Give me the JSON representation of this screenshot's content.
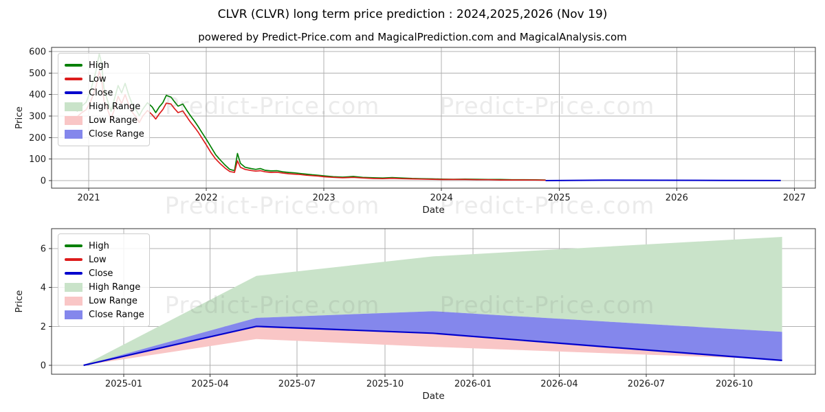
{
  "page": {
    "title": "CLVR (CLVR) long term price prediction : 2024,2025,2026 (Nov 19)",
    "subtitle": "powered by Predict-Price.com and MagicalPrediction.com and MagicalAnalysis.com",
    "watermark": "Predict-Price.com"
  },
  "colors": {
    "high": "#007f00",
    "low": "#dd1c1c",
    "close": "#0000cd",
    "high_range": "#c9e3c9",
    "low_range": "#f9c6c6",
    "close_range": "#8487ec",
    "grid": "#b0b0b0",
    "spine": "#333333",
    "tick_text": "#1a1a1a",
    "watermark": "rgba(110,110,110,0.14)"
  },
  "legend": {
    "items": [
      {
        "label": "High",
        "type": "line",
        "color_key": "high"
      },
      {
        "label": "Low",
        "type": "line",
        "color_key": "low"
      },
      {
        "label": "Close",
        "type": "line",
        "color_key": "close"
      },
      {
        "label": "High Range",
        "type": "patch",
        "color_key": "high_range"
      },
      {
        "label": "Low Range",
        "type": "patch",
        "color_key": "low_range"
      },
      {
        "label": "Close Range",
        "type": "patch",
        "color_key": "close_range"
      }
    ]
  },
  "chart_data": [
    {
      "type": "line",
      "title": "historical-and-prediction",
      "xlabel": "Date",
      "ylabel": "Price",
      "grid": true,
      "legend_position": "upper-left",
      "x_ticks": [
        {
          "label": "2021",
          "t": 2021
        },
        {
          "label": "2022",
          "t": 2022
        },
        {
          "label": "2023",
          "t": 2023
        },
        {
          "label": "2024",
          "t": 2024
        },
        {
          "label": "2025",
          "t": 2025
        },
        {
          "label": "2026",
          "t": 2026
        },
        {
          "label": "2027",
          "t": 2027
        }
      ],
      "y_ticks": [
        0,
        100,
        200,
        300,
        400,
        500,
        600
      ],
      "xlim": [
        2020.68,
        2027.15
      ],
      "ylim": [
        -30,
        617
      ],
      "history_columns": [
        "t_decimal_year",
        "high",
        "low"
      ],
      "history": [
        [
          2020.9,
          320,
          296
        ],
        [
          2020.94,
          345,
          315
        ],
        [
          2020.98,
          365,
          330
        ],
        [
          2021.02,
          425,
          372
        ],
        [
          2021.06,
          505,
          432
        ],
        [
          2021.09,
          590,
          508
        ],
        [
          2021.11,
          545,
          470
        ],
        [
          2021.13,
          430,
          372
        ],
        [
          2021.16,
          372,
          330
        ],
        [
          2021.19,
          322,
          288
        ],
        [
          2021.22,
          382,
          332
        ],
        [
          2021.25,
          442,
          392
        ],
        [
          2021.28,
          408,
          358
        ],
        [
          2021.31,
          452,
          400
        ],
        [
          2021.34,
          398,
          352
        ],
        [
          2021.37,
          356,
          318
        ],
        [
          2021.4,
          332,
          298
        ],
        [
          2021.43,
          302,
          270
        ],
        [
          2021.46,
          332,
          300
        ],
        [
          2021.5,
          362,
          326
        ],
        [
          2021.54,
          342,
          306
        ],
        [
          2021.57,
          316,
          286
        ],
        [
          2021.6,
          342,
          310
        ],
        [
          2021.63,
          362,
          330
        ],
        [
          2021.66,
          396,
          360
        ],
        [
          2021.7,
          388,
          356
        ],
        [
          2021.73,
          366,
          334
        ],
        [
          2021.76,
          346,
          316
        ],
        [
          2021.8,
          356,
          324
        ],
        [
          2021.83,
          330,
          300
        ],
        [
          2021.86,
          306,
          276
        ],
        [
          2021.9,
          276,
          248
        ],
        [
          2021.93,
          252,
          226
        ],
        [
          2021.96,
          226,
          200
        ],
        [
          2022.0,
          192,
          166
        ],
        [
          2022.04,
          156,
          130
        ],
        [
          2022.08,
          120,
          100
        ],
        [
          2022.12,
          95,
          78
        ],
        [
          2022.16,
          72,
          58
        ],
        [
          2022.2,
          52,
          42
        ],
        [
          2022.24,
          46,
          38
        ],
        [
          2022.265,
          126,
          92
        ],
        [
          2022.29,
          80,
          62
        ],
        [
          2022.33,
          62,
          52
        ],
        [
          2022.38,
          56,
          47
        ],
        [
          2022.42,
          52,
          44
        ],
        [
          2022.46,
          56,
          46
        ],
        [
          2022.5,
          48,
          41
        ],
        [
          2022.55,
          45,
          38
        ],
        [
          2022.6,
          46,
          39
        ],
        [
          2022.65,
          41,
          35
        ],
        [
          2022.7,
          38,
          32
        ],
        [
          2022.75,
          36,
          30
        ],
        [
          2022.8,
          33,
          28
        ],
        [
          2022.85,
          30,
          25
        ],
        [
          2022.9,
          27,
          23
        ],
        [
          2022.95,
          25,
          21
        ],
        [
          2023.0,
          22,
          18
        ],
        [
          2023.08,
          18,
          15
        ],
        [
          2023.16,
          16,
          13
        ],
        [
          2023.25,
          19,
          15
        ],
        [
          2023.33,
          15,
          12
        ],
        [
          2023.42,
          13,
          10
        ],
        [
          2023.5,
          12,
          9
        ],
        [
          2023.58,
          14,
          11
        ],
        [
          2023.66,
          12,
          9
        ],
        [
          2023.75,
          10,
          8
        ],
        [
          2023.83,
          9,
          7
        ],
        [
          2023.92,
          8,
          6
        ],
        [
          2024.0,
          7,
          5
        ],
        [
          2024.1,
          6,
          5
        ],
        [
          2024.2,
          7,
          5
        ],
        [
          2024.3,
          6,
          4
        ],
        [
          2024.4,
          5,
          4
        ],
        [
          2024.5,
          5,
          3
        ],
        [
          2024.6,
          4,
          3
        ],
        [
          2024.7,
          4,
          3
        ],
        [
          2024.8,
          3.5,
          2.5
        ],
        [
          2024.885,
          3,
          2
        ]
      ],
      "prediction": {
        "x": [
          2024.885,
          2025.38,
          2025.885,
          2026.38,
          2026.885
        ],
        "close": [
          0,
          2.0,
          1.65,
          0.95,
          0.25
        ]
      }
    },
    {
      "type": "area",
      "title": "prediction-detail",
      "xlabel": "Date",
      "ylabel": "Price",
      "grid": true,
      "legend_position": "upper-left",
      "x_ticks": [
        {
          "label": "2025-01",
          "t": 2025.0
        },
        {
          "label": "2025-04",
          "t": 2025.247
        },
        {
          "label": "2025-07",
          "t": 2025.496
        },
        {
          "label": "2025-10",
          "t": 2025.748
        },
        {
          "label": "2026-01",
          "t": 2026.0
        },
        {
          "label": "2026-04",
          "t": 2026.247
        },
        {
          "label": "2026-07",
          "t": 2026.496
        },
        {
          "label": "2026-10",
          "t": 2026.748
        }
      ],
      "y_ticks": [
        0,
        2,
        4,
        6
      ],
      "xlim": [
        2024.79,
        2026.97
      ],
      "ylim": [
        -0.46,
        7.0
      ],
      "x": [
        2024.885,
        2025.38,
        2025.885,
        2026.38,
        2026.885
      ],
      "series": {
        "close": [
          0,
          2.0,
          1.65,
          0.95,
          0.25
        ],
        "close_range_top": [
          0,
          2.44,
          2.78,
          2.25,
          1.72
        ],
        "low_range_bottom": [
          0,
          1.35,
          0.95,
          0.62,
          0.3
        ],
        "high_range_top": [
          0,
          4.6,
          5.6,
          6.1,
          6.6
        ]
      }
    }
  ]
}
